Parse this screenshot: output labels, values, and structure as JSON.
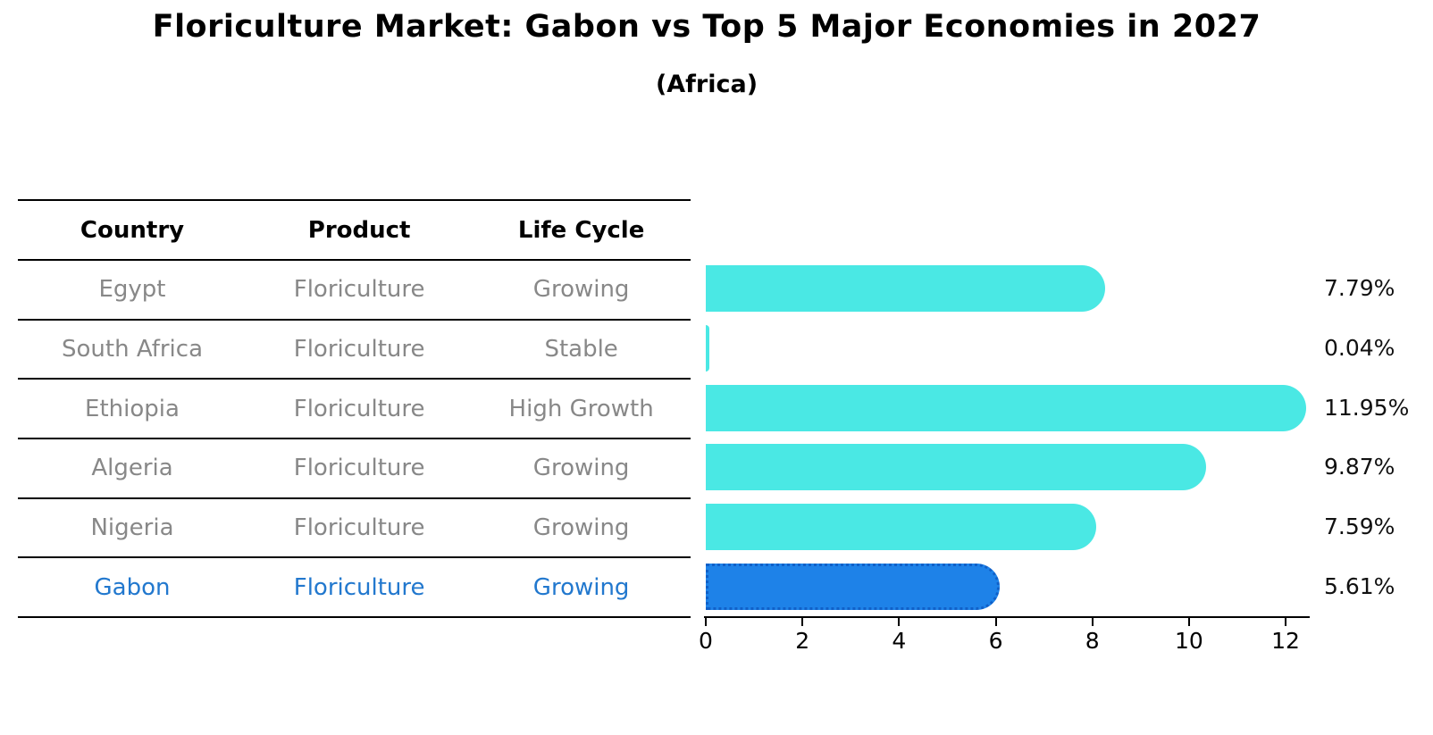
{
  "title": "Floriculture Market: Gabon vs Top 5 Major Economies in 2027",
  "subtitle": "(Africa)",
  "table": {
    "headers": [
      "Country",
      "Product",
      "Life Cycle"
    ],
    "rows": [
      {
        "country": "Egypt",
        "product": "Floriculture",
        "life_cycle": "Growing",
        "highlight": false
      },
      {
        "country": "South Africa",
        "product": "Floriculture",
        "life_cycle": "Stable",
        "highlight": false
      },
      {
        "country": "Ethiopia",
        "product": "Floriculture",
        "life_cycle": "High Growth",
        "highlight": false
      },
      {
        "country": "Algeria",
        "product": "Floriculture",
        "life_cycle": "Growing",
        "highlight": false
      },
      {
        "country": "Nigeria",
        "product": "Floriculture",
        "life_cycle": "Growing",
        "highlight": false
      },
      {
        "country": "Gabon",
        "product": "Floriculture",
        "life_cycle": "Growing",
        "highlight": true
      }
    ]
  },
  "chart_data": {
    "type": "bar",
    "orientation": "horizontal",
    "title": "Floriculture Market: Gabon vs Top 5 Major Economies in 2027",
    "subtitle": "(Africa)",
    "categories": [
      "Egypt",
      "South Africa",
      "Ethiopia",
      "Algeria",
      "Nigeria",
      "Gabon"
    ],
    "values": [
      7.79,
      0.04,
      11.95,
      9.87,
      7.59,
      5.61
    ],
    "value_labels": [
      "7.79%",
      "0.04%",
      "11.95%",
      "9.87%",
      "7.59%",
      "5.61%"
    ],
    "unit": "%",
    "xlabel": "",
    "ylabel": "",
    "xlim": [
      0,
      12.48
    ],
    "x_ticks": [
      0,
      2,
      4,
      6,
      8,
      10,
      12
    ],
    "grid": false,
    "legend": false,
    "highlight_index": 5,
    "colors": {
      "bar": "#4AE8E4",
      "highlight_bar": "#1E82E8",
      "highlight_border": "#1060C8",
      "highlight_text": "#2278CE",
      "row_text": "#888888",
      "header_text": "#000000",
      "value_text": "#111111",
      "axis": "#000000"
    }
  }
}
